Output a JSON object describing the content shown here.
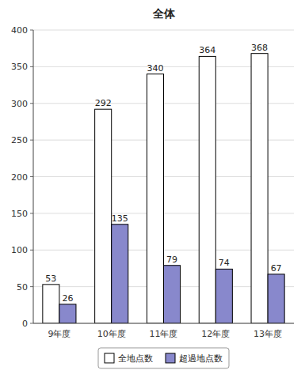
{
  "chart_data": {
    "type": "bar",
    "title": "全体",
    "categories": [
      "9年度",
      "10年度",
      "11年度",
      "12年度",
      "13年度"
    ],
    "series": [
      {
        "name": "全地点数",
        "color": "#ffffff",
        "values": [
          53,
          292,
          340,
          364,
          368
        ]
      },
      {
        "name": "超過地点数",
        "color": "#8888cc",
        "values": [
          26,
          135,
          79,
          74,
          67
        ]
      }
    ],
    "ylim": [
      0,
      400
    ],
    "yticks": [
      0,
      50,
      100,
      150,
      200,
      250,
      300,
      350,
      400
    ],
    "grid": true,
    "legend": "bottom",
    "data_labels": true
  }
}
